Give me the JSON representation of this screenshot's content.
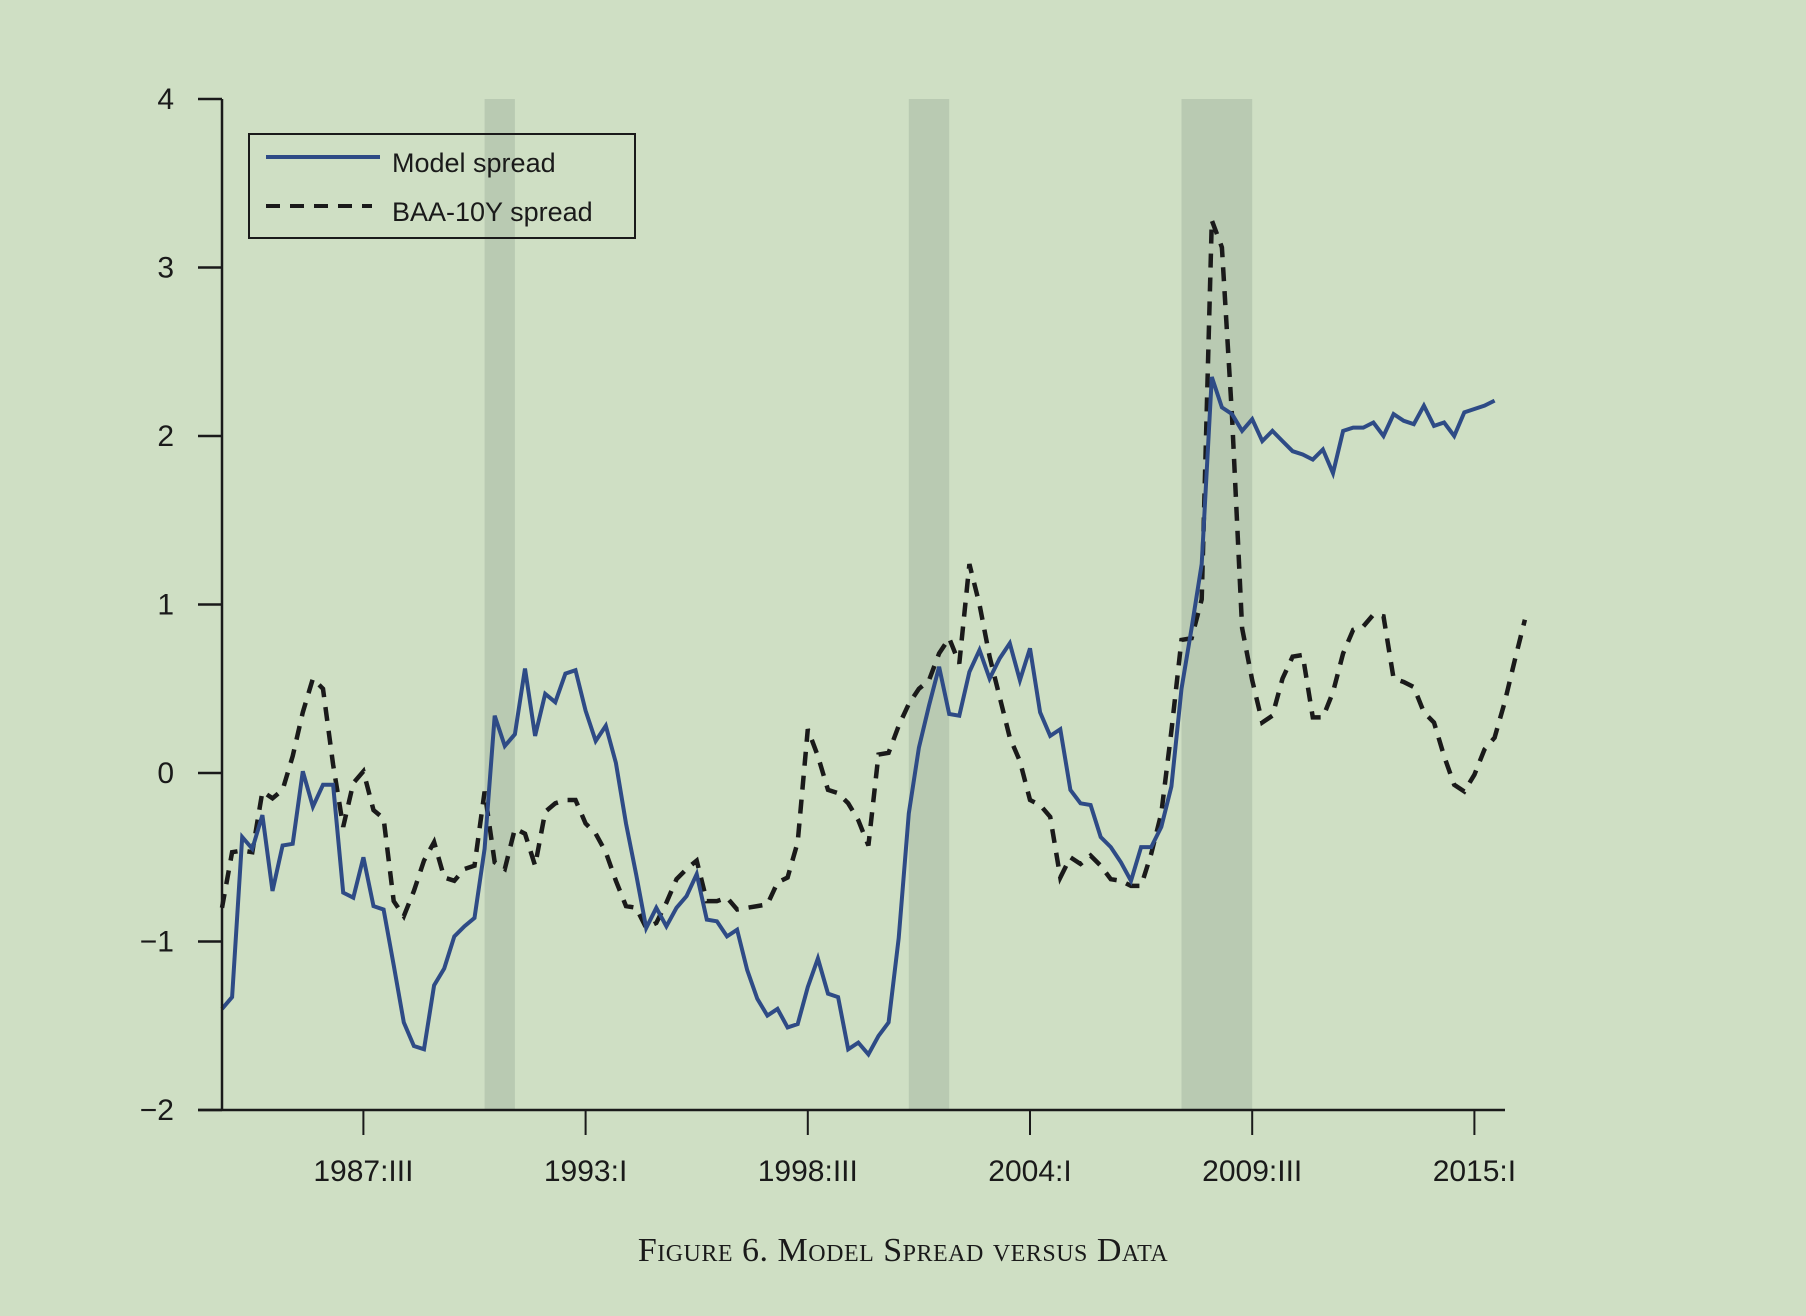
{
  "chart_data": {
    "type": "line",
    "title": "Figure 6. Model Spread versus Data",
    "xlabel": "",
    "ylabel": "",
    "ylim": [
      -2,
      4
    ],
    "yticks": [
      4,
      3,
      2,
      1,
      0,
      -1,
      -2
    ],
    "ytick_labels": [
      "4",
      "3",
      "2",
      "1",
      "0",
      "−1",
      "−2"
    ],
    "x_start": "1984:I",
    "x_end": "2015:IV",
    "frequency": "quarterly",
    "xticks": [
      "1987:III",
      "1993:I",
      "1998:III",
      "2004:I",
      "2009:III",
      "2015:I"
    ],
    "grid": false,
    "legend": {
      "placement": "top-left",
      "entries": [
        "Model spread",
        "BAA-10Y spread"
      ]
    },
    "recessions": [
      {
        "start": "1990:III",
        "end": "1991:I"
      },
      {
        "start": "2001:I",
        "end": "2001:IV"
      },
      {
        "start": "2007:IV",
        "end": "2009:II"
      }
    ],
    "series": [
      {
        "name": "Model spread",
        "color": "#2e4b86",
        "style": "solid",
        "values": [
          -1.4,
          -1.33,
          -0.38,
          -0.45,
          -0.25,
          -0.7,
          -0.43,
          -0.42,
          0.01,
          -0.2,
          -0.07,
          -0.07,
          -0.71,
          -0.74,
          -0.5,
          -0.79,
          -0.81,
          -1.14,
          -1.48,
          -1.62,
          -1.64,
          -1.26,
          -1.16,
          -0.97,
          -0.91,
          -0.86,
          -0.45,
          0.34,
          0.16,
          0.23,
          0.62,
          0.22,
          0.47,
          0.42,
          0.59,
          0.61,
          0.37,
          0.19,
          0.28,
          0.06,
          -0.3,
          -0.6,
          -0.92,
          -0.8,
          -0.91,
          -0.8,
          -0.73,
          -0.6,
          -0.87,
          -0.88,
          -0.97,
          -0.93,
          -1.17,
          -1.34,
          -1.44,
          -1.4,
          -1.51,
          -1.49,
          -1.27,
          -1.1,
          -1.31,
          -1.33,
          -1.64,
          -1.6,
          -1.67,
          -1.56,
          -1.48,
          -0.98,
          -0.24,
          0.15,
          0.4,
          0.63,
          0.35,
          0.34,
          0.6,
          0.73,
          0.56,
          0.68,
          0.77,
          0.55,
          0.74,
          0.36,
          0.22,
          0.26,
          -0.1,
          -0.18,
          -0.19,
          -0.38,
          -0.44,
          -0.53,
          -0.64,
          -0.44,
          -0.44,
          -0.32,
          -0.08,
          0.5,
          0.86,
          1.24,
          2.35,
          2.17,
          2.13,
          2.03,
          2.1,
          1.97,
          2.03,
          1.97,
          1.91,
          1.89,
          1.86,
          1.92,
          1.78,
          2.03,
          2.05,
          2.05,
          2.08,
          2.0,
          2.13,
          2.09,
          2.07,
          2.18,
          2.06,
          2.08,
          2.0,
          2.14,
          2.16,
          2.18,
          2.21
        ]
      },
      {
        "name": "BAA-10Y spread",
        "color": "#1a1a1a",
        "style": "dashed",
        "values": [
          -0.8,
          -0.47,
          -0.46,
          -0.47,
          -0.11,
          -0.15,
          -0.1,
          0.1,
          0.36,
          0.56,
          0.5,
          0.05,
          -0.32,
          -0.06,
          0.01,
          -0.22,
          -0.27,
          -0.76,
          -0.85,
          -0.7,
          -0.52,
          -0.41,
          -0.62,
          -0.64,
          -0.57,
          -0.55,
          -0.11,
          -0.53,
          -0.57,
          -0.33,
          -0.36,
          -0.55,
          -0.23,
          -0.18,
          -0.16,
          -0.16,
          -0.3,
          -0.36,
          -0.47,
          -0.64,
          -0.79,
          -0.8,
          -0.92,
          -0.89,
          -0.77,
          -0.63,
          -0.57,
          -0.52,
          -0.76,
          -0.76,
          -0.74,
          -0.81,
          -0.8,
          -0.79,
          -0.78,
          -0.65,
          -0.62,
          -0.41,
          0.26,
          0.1,
          -0.1,
          -0.12,
          -0.18,
          -0.28,
          -0.43,
          0.11,
          0.12,
          0.28,
          0.41,
          0.5,
          0.55,
          0.71,
          0.8,
          0.65,
          1.24,
          1.0,
          0.69,
          0.45,
          0.21,
          0.07,
          -0.16,
          -0.19,
          -0.26,
          -0.62,
          -0.5,
          -0.54,
          -0.49,
          -0.55,
          -0.63,
          -0.64,
          -0.67,
          -0.67,
          -0.48,
          -0.24,
          0.25,
          0.79,
          0.8,
          1.03,
          3.28,
          3.12,
          2.12,
          0.86,
          0.55,
          0.3,
          0.34,
          0.56,
          0.69,
          0.7,
          0.33,
          0.33,
          0.48,
          0.71,
          0.85,
          0.87,
          0.94,
          0.93,
          0.56,
          0.54,
          0.51,
          0.36,
          0.3,
          0.1,
          -0.07,
          -0.11,
          -0.01,
          0.14,
          0.21,
          0.42,
          0.67,
          0.91
        ]
      }
    ]
  },
  "caption": "Figure 6. Model Spread versus Data"
}
